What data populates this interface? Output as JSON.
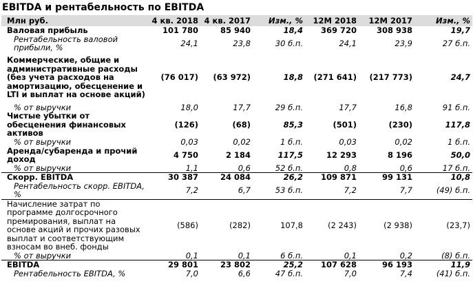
{
  "title": "EBITDA и рентабельность по EBITDA",
  "header": [
    "Млн руб.",
    "4 кв. 2018",
    "4 кв. 2017",
    "Изм., %",
    "12М 2018",
    "12М 2017",
    "Изм., %"
  ],
  "rows": [
    {
      "label": "Валовая прибыль",
      "v": [
        "101 780",
        "85 940",
        "18,4",
        "369 720",
        "308 938",
        "19,7"
      ]
    },
    {
      "label": "Рентабельность валовой прибыли, %",
      "v": [
        "24,1",
        "23,8",
        "30 б.п.",
        "24,1",
        "23,9",
        "27 б.п."
      ]
    },
    {
      "label": "Коммерческие, общие и административные расходы (без учета расходов на амортизацию, обесценение и LTI и выплат на основе акций)",
      "v": [
        "(76 017)",
        "(63 972)",
        "18,8",
        "(271 641)",
        "(217 773)",
        "24,7"
      ]
    },
    {
      "label": "% от выручки",
      "v": [
        "18,0",
        "17,7",
        "29 б.п.",
        "17,7",
        "16,8",
        "91 б.п."
      ]
    },
    {
      "label": "Чистые убытки от обесценения финансовых активов",
      "v": [
        "(126)",
        "(68)",
        "85,3",
        "(501)",
        "(230)",
        "117,8"
      ]
    },
    {
      "label": "% от выручки",
      "v": [
        "0,03",
        "0,02",
        "1 б.п.",
        "0,03",
        "0,02",
        "1 б.п."
      ]
    },
    {
      "label": "Аренда/субаренда и прочий доход",
      "v": [
        "4 750",
        "2 184",
        "117,5",
        "12 293",
        "8 196",
        "50,0"
      ]
    },
    {
      "label": "% от выручки",
      "v": [
        "1,1",
        "0,6",
        "52 б.п.",
        "0,8",
        "0,6",
        "17 б.п."
      ]
    },
    {
      "label": "Скорр. EBITDA",
      "v": [
        "30 387",
        "24 084",
        "26,2",
        "109 871",
        "99 131",
        "10,8"
      ]
    },
    {
      "label": "Рентабельность скорр. EBITDA, %",
      "v": [
        "7,2",
        "6,7",
        "53 б.п.",
        "7,2",
        "7,7",
        "(49) б.п."
      ]
    },
    {
      "label": "Начисление затрат по программе долгосрочного премирования, выплат на основе акций и прочих разовых выплат и соответствующим взносам во внеб. фонды",
      "v": [
        "(586)",
        "(282)",
        "107,8",
        "(2 243)",
        "(2 938)",
        "(23,7)"
      ]
    },
    {
      "label": "% от выручки",
      "v": [
        "0,1",
        "0,1",
        "6 б.п.",
        "0,1",
        "0,2",
        "(8) б.п."
      ]
    },
    {
      "label": "EBITDA",
      "v": [
        "29 801",
        "23 802",
        "25,2",
        "107 628",
        "96 193",
        "11,9"
      ]
    },
    {
      "label": "Рентабельность EBITDA, %",
      "v": [
        "7,0",
        "6,6",
        "47 б.п.",
        "7,0",
        "7,4",
        "(41) б.п."
      ]
    }
  ]
}
